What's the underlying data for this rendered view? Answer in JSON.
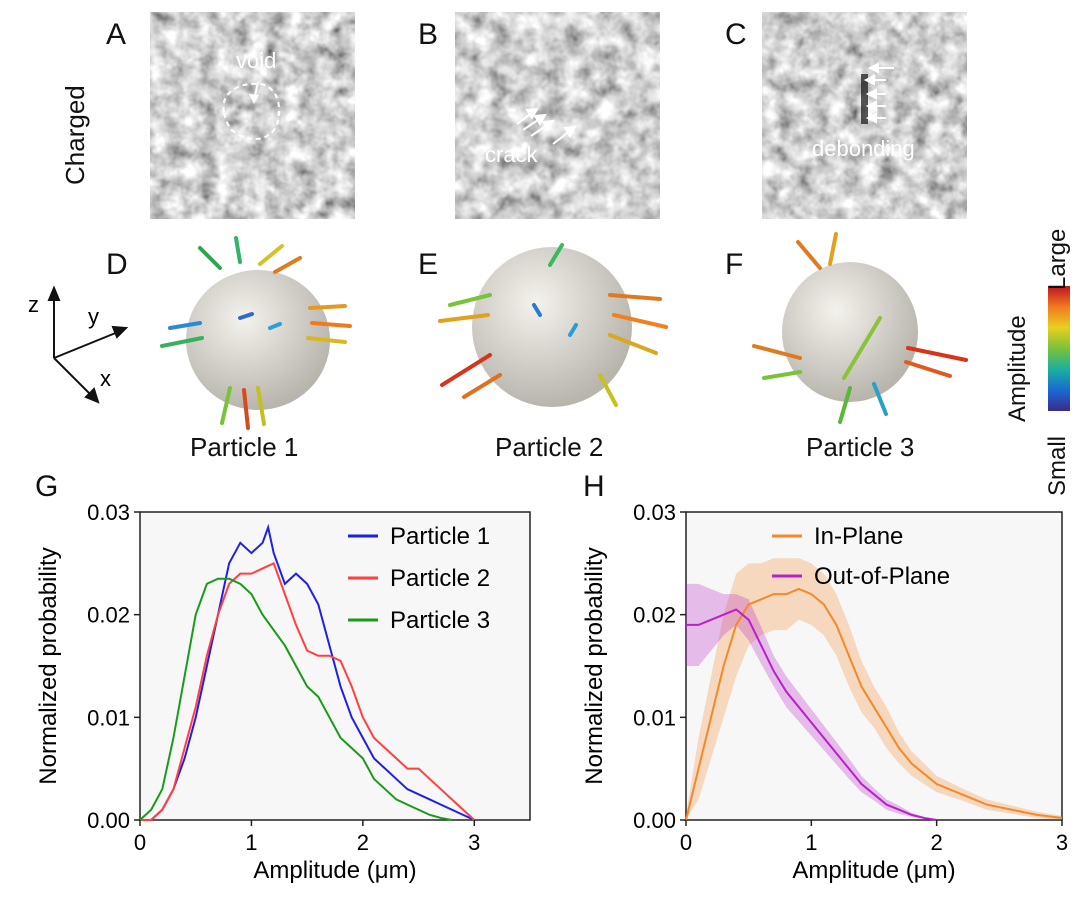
{
  "panel_letters": {
    "a": "A",
    "b": "B",
    "c": "C",
    "d": "D",
    "e": "E",
    "f": "F",
    "g": "G",
    "h": "H"
  },
  "row_label": "Charged",
  "tomo": {
    "void_label": "void",
    "crack_label": "crack",
    "debonding_label": "debonding"
  },
  "axes3d": {
    "z": "z",
    "y": "y",
    "x": "x"
  },
  "particle_labels": [
    "Particle 1",
    "Particle 2",
    "Particle 3"
  ],
  "colorbar": {
    "title": "Amplitude",
    "high": "Large",
    "low": "Small"
  },
  "colors": {
    "p1": "#1f1fe6",
    "p2": "#ff4040",
    "p3": "#1a9a1a",
    "inplane": "#f5882a",
    "outplane": "#b820c8"
  },
  "chart_data": [
    {
      "type": "line",
      "xlabel": "Amplitude (μm)",
      "ylabel": "Normalized probability",
      "xlim": [
        0,
        3.5
      ],
      "ylim": [
        0,
        0.03
      ],
      "xticks": [
        "0",
        "1",
        "2",
        "3"
      ],
      "yticks": [
        "0.00",
        "0.01",
        "0.02",
        "0.03"
      ],
      "legend_position": "top-right",
      "series": [
        {
          "name": "Particle 1",
          "x": [
            0,
            0.1,
            0.2,
            0.3,
            0.4,
            0.5,
            0.6,
            0.7,
            0.8,
            0.9,
            1.0,
            1.1,
            1.15,
            1.2,
            1.3,
            1.4,
            1.5,
            1.6,
            1.7,
            1.8,
            1.9,
            2.0,
            2.1,
            2.2,
            2.3,
            2.4,
            2.5,
            2.6,
            2.7,
            2.8,
            2.9,
            3.0
          ],
          "y": [
            0,
            0,
            0.001,
            0.003,
            0.006,
            0.01,
            0.015,
            0.02,
            0.025,
            0.027,
            0.026,
            0.027,
            0.0285,
            0.026,
            0.023,
            0.024,
            0.023,
            0.021,
            0.017,
            0.013,
            0.01,
            0.008,
            0.006,
            0.005,
            0.004,
            0.003,
            0.0025,
            0.002,
            0.0015,
            0.001,
            0.0005,
            0
          ]
        },
        {
          "name": "Particle 2",
          "x": [
            0,
            0.1,
            0.2,
            0.3,
            0.4,
            0.5,
            0.6,
            0.7,
            0.8,
            0.9,
            1.0,
            1.1,
            1.2,
            1.3,
            1.4,
            1.5,
            1.6,
            1.7,
            1.8,
            1.9,
            2.0,
            2.1,
            2.2,
            2.3,
            2.4,
            2.5,
            2.6,
            2.7,
            2.8,
            2.9,
            3.0
          ],
          "y": [
            0,
            0,
            0.001,
            0.003,
            0.007,
            0.011,
            0.016,
            0.02,
            0.023,
            0.024,
            0.024,
            0.0245,
            0.025,
            0.022,
            0.019,
            0.0165,
            0.016,
            0.016,
            0.0155,
            0.013,
            0.01,
            0.008,
            0.007,
            0.006,
            0.005,
            0.005,
            0.004,
            0.003,
            0.002,
            0.001,
            0
          ]
        },
        {
          "name": "Particle 3",
          "x": [
            0,
            0.1,
            0.2,
            0.3,
            0.4,
            0.5,
            0.6,
            0.7,
            0.8,
            0.9,
            1.0,
            1.1,
            1.2,
            1.3,
            1.4,
            1.5,
            1.6,
            1.7,
            1.8,
            1.9,
            2.0,
            2.1,
            2.2,
            2.3,
            2.4,
            2.5,
            2.6,
            2.7,
            2.8
          ],
          "y": [
            0,
            0.001,
            0.003,
            0.008,
            0.014,
            0.02,
            0.023,
            0.0235,
            0.0235,
            0.023,
            0.022,
            0.02,
            0.0185,
            0.017,
            0.015,
            0.013,
            0.012,
            0.01,
            0.008,
            0.007,
            0.006,
            0.004,
            0.003,
            0.002,
            0.0015,
            0.001,
            0.0005,
            0.0002,
            0
          ]
        }
      ]
    },
    {
      "type": "line",
      "xlabel": "Amplitude (μm)",
      "ylabel": "Normalized probability",
      "xlim": [
        0,
        3
      ],
      "ylim": [
        0,
        0.03
      ],
      "xticks": [
        "0",
        "1",
        "2",
        "3"
      ],
      "yticks": [
        "0.00",
        "0.01",
        "0.02",
        "0.03"
      ],
      "legend_position": "top-right",
      "series": [
        {
          "name": "In-Plane",
          "x": [
            0,
            0.1,
            0.2,
            0.3,
            0.4,
            0.5,
            0.6,
            0.7,
            0.8,
            0.9,
            1.0,
            1.1,
            1.2,
            1.3,
            1.4,
            1.5,
            1.6,
            1.7,
            1.8,
            1.9,
            2.0,
            2.2,
            2.4,
            2.6,
            2.8,
            3.0
          ],
          "y": [
            0,
            0.005,
            0.01,
            0.015,
            0.019,
            0.021,
            0.0215,
            0.022,
            0.022,
            0.0225,
            0.022,
            0.021,
            0.019,
            0.016,
            0.013,
            0.011,
            0.009,
            0.007,
            0.0055,
            0.0045,
            0.0035,
            0.0025,
            0.0015,
            0.001,
            0.0005,
            0.0002
          ],
          "band": [
            0.0005,
            0.003,
            0.004,
            0.005,
            0.005,
            0.004,
            0.0035,
            0.0035,
            0.0035,
            0.003,
            0.003,
            0.003,
            0.003,
            0.003,
            0.0025,
            0.002,
            0.002,
            0.0015,
            0.0012,
            0.001,
            0.0008,
            0.0006,
            0.0005,
            0.0004,
            0.0003,
            0.0002
          ]
        },
        {
          "name": "Out-of-Plane",
          "x": [
            0,
            0.1,
            0.2,
            0.3,
            0.4,
            0.5,
            0.6,
            0.7,
            0.8,
            0.9,
            1.0,
            1.1,
            1.2,
            1.3,
            1.4,
            1.5,
            1.6,
            1.7,
            1.8,
            1.9,
            2.0
          ],
          "y": [
            0.019,
            0.019,
            0.0195,
            0.02,
            0.0205,
            0.0195,
            0.017,
            0.0145,
            0.0125,
            0.011,
            0.0095,
            0.008,
            0.0065,
            0.005,
            0.0035,
            0.0025,
            0.0015,
            0.001,
            0.0005,
            0.0002,
            0
          ],
          "band": [
            0.004,
            0.004,
            0.003,
            0.002,
            0.0015,
            0.002,
            0.0018,
            0.0015,
            0.0015,
            0.0014,
            0.0013,
            0.0012,
            0.0011,
            0.001,
            0.0008,
            0.0006,
            0.0005,
            0.0004,
            0.0002,
            0.0001,
            0
          ]
        }
      ]
    }
  ]
}
